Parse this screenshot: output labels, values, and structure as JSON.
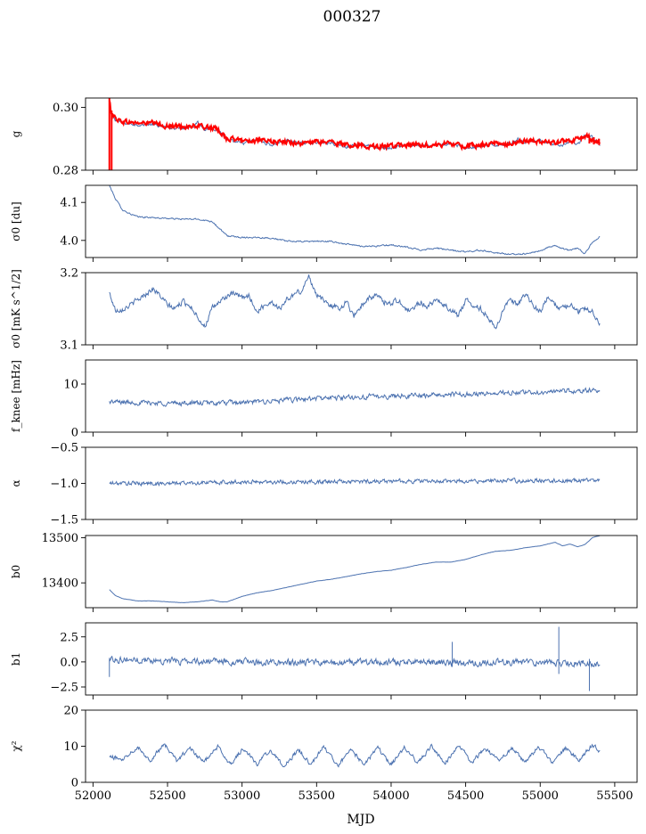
{
  "figure": {
    "title": "000327",
    "xlabel": "MJD",
    "xlim": [
      51950,
      55650
    ],
    "xticks": [
      52000,
      52500,
      53000,
      53500,
      54000,
      54500,
      55000,
      55500
    ],
    "colors": {
      "series": "#4c72b0",
      "model": "#ff0000",
      "axes": "#000000"
    }
  },
  "chart_data": [
    {
      "type": "line",
      "title": "000327",
      "ylabel": "g",
      "ylim": [
        0.28,
        0.303
      ],
      "yticks": [
        0.28,
        0.3
      ],
      "yticklabels": [
        "0.28",
        "0.30"
      ],
      "series": [
        {
          "name": "g",
          "color": "#4c72b0",
          "linewidth": 1,
          "x": [
            52110,
            52120,
            52150,
            52200,
            52300,
            52400,
            52500,
            52600,
            52680,
            52700,
            52750,
            52800,
            52850,
            52900,
            52950,
            53000,
            53100,
            53200,
            53300,
            53400,
            53500,
            53600,
            53650,
            53700,
            53800,
            53900,
            54000,
            54100,
            54200,
            54300,
            54400,
            54500,
            54600,
            54700,
            54800,
            54850,
            54900,
            55000,
            55100,
            55150,
            55200,
            55250,
            55300,
            55350,
            55400
          ],
          "y": [
            0.2995,
            0.2985,
            0.296,
            0.295,
            0.2945,
            0.2945,
            0.2935,
            0.2935,
            0.294,
            0.2955,
            0.293,
            0.2935,
            0.2925,
            0.2895,
            0.289,
            0.2885,
            0.2895,
            0.288,
            0.2895,
            0.2885,
            0.289,
            0.2885,
            0.288,
            0.2875,
            0.2885,
            0.287,
            0.287,
            0.288,
            0.2875,
            0.288,
            0.2885,
            0.287,
            0.2875,
            0.288,
            0.2885,
            0.29,
            0.289,
            0.2895,
            0.288,
            0.2875,
            0.2895,
            0.288,
            0.291,
            0.2905,
            0.288
          ],
          "noise": 0.0007
        },
        {
          "name": "g model",
          "color": "#ff0000",
          "linewidth": 2,
          "x": [
            52110,
            52120,
            52150,
            52200,
            52300,
            52400,
            52500,
            52600,
            52700,
            52800,
            52850,
            52900,
            53000,
            53100,
            53200,
            53300,
            53400,
            53500,
            53600,
            53700,
            53800,
            53900,
            54000,
            54100,
            54200,
            54300,
            54400,
            54500,
            54600,
            54700,
            54800,
            54900,
            55000,
            55100,
            55200,
            55300,
            55350,
            55400
          ],
          "y": [
            0.302,
            0.299,
            0.2965,
            0.2955,
            0.295,
            0.295,
            0.294,
            0.294,
            0.294,
            0.2935,
            0.2925,
            0.29,
            0.2895,
            0.2895,
            0.289,
            0.289,
            0.2885,
            0.289,
            0.289,
            0.288,
            0.288,
            0.2875,
            0.2875,
            0.288,
            0.288,
            0.288,
            0.2885,
            0.2875,
            0.288,
            0.2885,
            0.2885,
            0.2895,
            0.289,
            0.289,
            0.289,
            0.291,
            0.29,
            0.289
          ],
          "noise": 0.0012,
          "spikes": [
            {
              "x": 52110,
              "y0": 0.28,
              "y1": 0.303
            },
            {
              "x": 52125,
              "y0": 0.28,
              "y1": 0.299
            },
            {
              "x": 55330,
              "y0": 0.2885,
              "y1": 0.2905
            },
            {
              "x": 55360,
              "y0": 0.2882,
              "y1": 0.2905
            },
            {
              "x": 55395,
              "y0": 0.288,
              "y1": 0.29
            }
          ]
        }
      ]
    },
    {
      "type": "line",
      "ylabel": "σ0 [du]",
      "ylim": [
        3.955,
        4.145
      ],
      "yticks": [
        4.0,
        4.1
      ],
      "yticklabels": [
        "4.0",
        "4.1"
      ],
      "series": [
        {
          "name": "sigma0_du",
          "color": "#4c72b0",
          "linewidth": 1,
          "x": [
            52110,
            52150,
            52200,
            52250,
            52300,
            52400,
            52500,
            52600,
            52700,
            52800,
            52850,
            52900,
            53000,
            53100,
            53200,
            53300,
            53400,
            53500,
            53600,
            53700,
            53800,
            53900,
            54000,
            54100,
            54200,
            54300,
            54400,
            54500,
            54600,
            54700,
            54800,
            54900,
            55000,
            55050,
            55100,
            55200,
            55250,
            55300,
            55350,
            55400
          ],
          "y": [
            4.145,
            4.11,
            4.08,
            4.07,
            4.062,
            4.06,
            4.058,
            4.056,
            4.056,
            4.05,
            4.03,
            4.012,
            4.008,
            4.008,
            4.006,
            3.998,
            3.997,
            3.998,
            3.997,
            3.99,
            3.985,
            3.985,
            3.988,
            3.982,
            3.975,
            3.98,
            3.974,
            3.97,
            3.974,
            3.968,
            3.963,
            3.965,
            3.972,
            3.982,
            3.985,
            3.973,
            3.98,
            3.965,
            3.995,
            4.01
          ],
          "noise": 0.003
        }
      ]
    },
    {
      "type": "line",
      "ylabel": "σ0 [mK s^1/2]",
      "ylim": [
        3.1,
        3.2
      ],
      "yticks": [
        3.1,
        3.2
      ],
      "yticklabels": [
        "3.1",
        "3.2"
      ],
      "series": [
        {
          "name": "sigma0_mK",
          "color": "#4c72b0",
          "linewidth": 1,
          "x": [
            52110,
            52150,
            52200,
            52250,
            52300,
            52350,
            52400,
            52450,
            52500,
            52550,
            52600,
            52650,
            52700,
            52750,
            52800,
            52850,
            52900,
            52950,
            53000,
            53050,
            53100,
            53150,
            53200,
            53250,
            53300,
            53350,
            53400,
            53450,
            53500,
            53550,
            53600,
            53650,
            53700,
            53750,
            53800,
            53850,
            53900,
            53950,
            54000,
            54050,
            54100,
            54150,
            54200,
            54250,
            54300,
            54350,
            54400,
            54450,
            54500,
            54550,
            54600,
            54650,
            54700,
            54750,
            54800,
            54850,
            54900,
            54950,
            55000,
            55050,
            55100,
            55150,
            55200,
            55250,
            55300,
            55350,
            55400
          ],
          "y": [
            3.172,
            3.148,
            3.15,
            3.155,
            3.162,
            3.17,
            3.178,
            3.168,
            3.155,
            3.15,
            3.16,
            3.155,
            3.14,
            3.125,
            3.15,
            3.16,
            3.168,
            3.17,
            3.165,
            3.168,
            3.145,
            3.155,
            3.16,
            3.15,
            3.162,
            3.17,
            3.175,
            3.195,
            3.17,
            3.16,
            3.155,
            3.15,
            3.16,
            3.14,
            3.155,
            3.165,
            3.168,
            3.16,
            3.158,
            3.162,
            3.148,
            3.15,
            3.16,
            3.152,
            3.165,
            3.155,
            3.15,
            3.14,
            3.162,
            3.155,
            3.15,
            3.14,
            3.12,
            3.15,
            3.16,
            3.155,
            3.17,
            3.155,
            3.145,
            3.165,
            3.155,
            3.15,
            3.158,
            3.145,
            3.15,
            3.148,
            3.128
          ],
          "noise": 0.006
        }
      ]
    },
    {
      "type": "line",
      "ylabel": "f_knee [mHz]",
      "ylim": [
        0,
        15
      ],
      "yticks": [
        0,
        10
      ],
      "yticklabels": [
        "0",
        "10"
      ],
      "series": [
        {
          "name": "fknee",
          "color": "#4c72b0",
          "linewidth": 1,
          "x": [
            52110,
            52500,
            53000,
            53500,
            54000,
            54500,
            55000,
            55400
          ],
          "y": [
            6.3,
            6.0,
            6.1,
            7.0,
            7.5,
            7.9,
            8.3,
            8.7
          ],
          "noise": 0.8
        }
      ]
    },
    {
      "type": "line",
      "ylabel": "α",
      "ylim": [
        -1.5,
        -0.5
      ],
      "yticks": [
        -1.5,
        -1.0,
        -0.5
      ],
      "yticklabels": [
        "−1.5",
        "−1.0",
        "−0.5"
      ],
      "series": [
        {
          "name": "alpha",
          "color": "#4c72b0",
          "linewidth": 1,
          "x": [
            52110,
            52500,
            53000,
            53500,
            54000,
            54500,
            55000,
            55400
          ],
          "y": [
            -1.0,
            -1.0,
            -0.98,
            -0.98,
            -0.97,
            -0.97,
            -0.96,
            -0.96
          ],
          "noise": 0.045
        }
      ]
    },
    {
      "type": "line",
      "ylabel": "b0",
      "ylim": [
        13345,
        13505
      ],
      "yticks": [
        13400,
        13500
      ],
      "yticklabels": [
        "13400",
        "13500"
      ],
      "series": [
        {
          "name": "b0",
          "color": "#4c72b0",
          "linewidth": 1,
          "x": [
            52110,
            52150,
            52200,
            52300,
            52400,
            52500,
            52600,
            52700,
            52800,
            52850,
            52900,
            53000,
            53100,
            53200,
            53300,
            53400,
            53500,
            53600,
            53700,
            53800,
            53900,
            54000,
            54100,
            54200,
            54300,
            54400,
            54500,
            54600,
            54700,
            54800,
            54900,
            55000,
            55100,
            55150,
            55200,
            55250,
            55300,
            55350,
            55400
          ],
          "y": [
            13385,
            13372,
            13365,
            13360,
            13360,
            13358,
            13356,
            13358,
            13362,
            13358,
            13358,
            13370,
            13378,
            13383,
            13390,
            13397,
            13404,
            13408,
            13414,
            13420,
            13425,
            13428,
            13434,
            13441,
            13446,
            13446,
            13452,
            13462,
            13470,
            13472,
            13478,
            13482,
            13490,
            13482,
            13486,
            13480,
            13485,
            13500,
            13505
          ],
          "noise": 0.4
        }
      ]
    },
    {
      "type": "line",
      "ylabel": "b1",
      "ylim": [
        -3.3,
        3.9
      ],
      "yticks": [
        -2.5,
        0.0,
        2.5
      ],
      "yticklabels": [
        "−2.5",
        "0.0",
        "2.5"
      ],
      "series": [
        {
          "name": "b1",
          "color": "#4c72b0",
          "linewidth": 1,
          "x": [
            52110,
            52500,
            53000,
            53500,
            54000,
            54500,
            55000,
            55400
          ],
          "y": [
            0.3,
            0.1,
            0.0,
            -0.1,
            0.0,
            -0.1,
            0.0,
            -0.2
          ],
          "noise": 0.5,
          "spikes": [
            {
              "x": 52110,
              "y0": 0.3,
              "y1": -1.5
            },
            {
              "x": 54410,
              "y0": -0.5,
              "y1": 2.0
            },
            {
              "x": 55125,
              "y0": -1.2,
              "y1": 3.5
            },
            {
              "x": 55330,
              "y0": 0.3,
              "y1": -2.9
            }
          ]
        }
      ]
    },
    {
      "type": "line",
      "ylabel": "χ²",
      "ylim": [
        0,
        20
      ],
      "yticks": [
        0,
        10,
        20
      ],
      "yticklabels": [
        "0",
        "10",
        "20"
      ],
      "series": [
        {
          "name": "chi2",
          "color": "#4c72b0",
          "linewidth": 1,
          "x": [
            52110,
            52200,
            52300,
            52380,
            52480,
            52560,
            52650,
            52740,
            52840,
            52920,
            53010,
            53100,
            53190,
            53280,
            53380,
            53460,
            53550,
            53640,
            53730,
            53820,
            53910,
            54000,
            54090,
            54180,
            54270,
            54360,
            54450,
            54540,
            54630,
            54720,
            54810,
            54900,
            54990,
            55080,
            55170,
            55260,
            55350,
            55400
          ],
          "y": [
            7.0,
            6.5,
            10.0,
            6.0,
            10.5,
            6.0,
            9.5,
            5.5,
            10.0,
            5.0,
            9.5,
            5.0,
            9.0,
            4.5,
            9.0,
            5.0,
            10.0,
            4.5,
            9.0,
            5.0,
            9.5,
            5.0,
            9.5,
            5.5,
            10.0,
            5.0,
            10.5,
            5.5,
            9.5,
            6.0,
            9.5,
            5.5,
            10.0,
            5.5,
            9.5,
            6.0,
            10.5,
            8.5
          ],
          "noise": 0.9
        }
      ]
    }
  ]
}
